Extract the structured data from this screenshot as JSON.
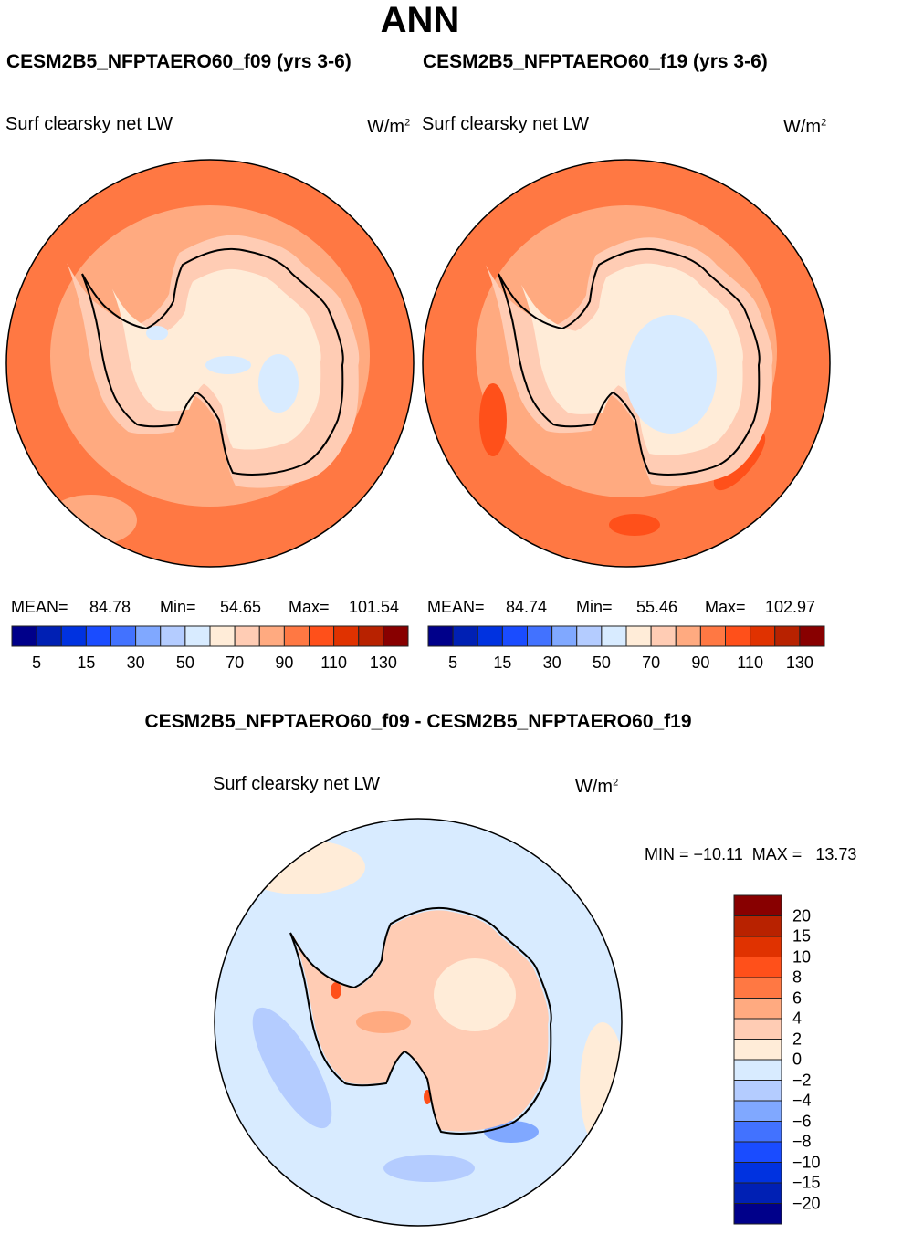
{
  "title": "ANN",
  "panels": [
    {
      "case": "CESM2B5_NFPTAERO60_f09 (yrs 3-6)",
      "variable": "Surf clearsky net LW",
      "units": "W/m",
      "units_sup": "2",
      "mean_label": "MEAN=",
      "mean": "84.78",
      "min_label": "Min=",
      "min": "54.65",
      "max_label": "Max=",
      "max": "101.54"
    },
    {
      "case": "CESM2B5_NFPTAERO60_f19 (yrs 3-6)",
      "variable": "Surf clearsky net LW",
      "units": "W/m",
      "units_sup": "2",
      "mean_label": "MEAN=",
      "mean": "84.74",
      "min_label": "Min=",
      "min": "55.46",
      "max_label": "Max=",
      "max": "102.97"
    }
  ],
  "colorbar": {
    "labels": [
      "5",
      "15",
      "30",
      "50",
      "70",
      "90",
      "110",
      "130"
    ],
    "colors": [
      "#00008a",
      "#0020b4",
      "#0032e0",
      "#1a4cff",
      "#4272ff",
      "#80a8ff",
      "#b4ccff",
      "#d8ebff",
      "#ffecd8",
      "#ffccb4",
      "#ffaa80",
      "#ff7843",
      "#ff501a",
      "#e03200",
      "#b82200",
      "#880000"
    ]
  },
  "diff": {
    "title": "CESM2B5_NFPTAERO60_f09 - CESM2B5_NFPTAERO60_f19",
    "variable": "Surf clearsky net LW",
    "units": "W/m",
    "units_sup": "2",
    "min_label": "MIN =",
    "min": "−10.11",
    "max_label": "MAX =",
    "max": "13.73",
    "labels": [
      "20",
      "15",
      "10",
      "8",
      "6",
      "4",
      "2",
      "0",
      "−2",
      "−4",
      "−6",
      "−8",
      "−10",
      "−15",
      "−20"
    ]
  }
}
